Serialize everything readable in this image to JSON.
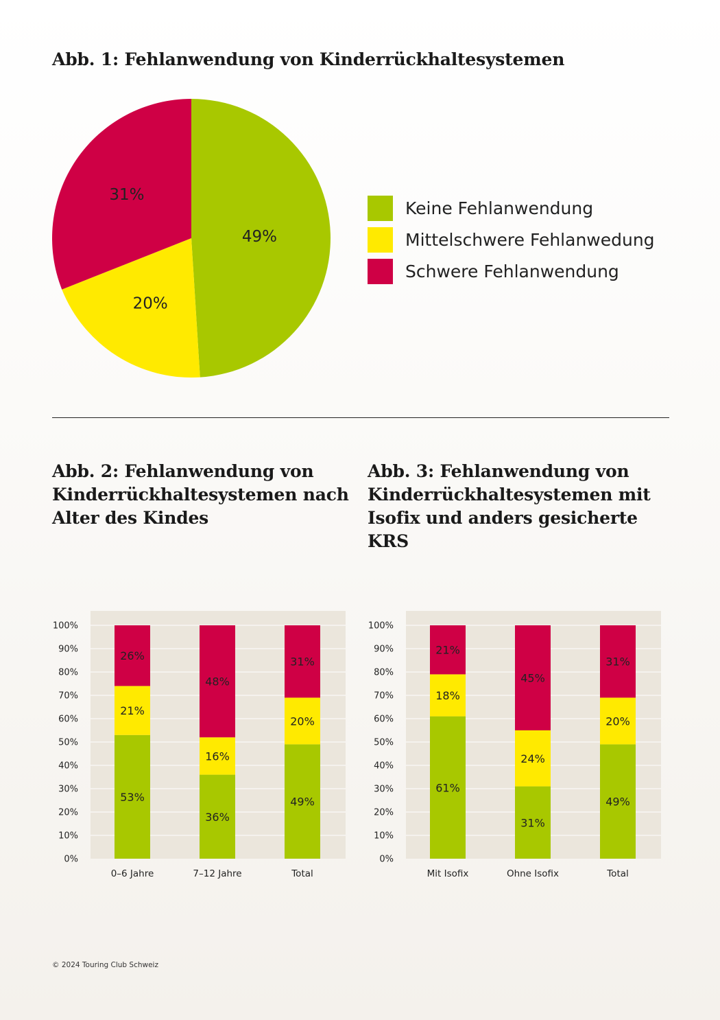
{
  "colors": {
    "green": "#a8c800",
    "yellow": "#ffea00",
    "red": "#cf0045",
    "plot_bg": "#ebe6dc",
    "grid": "#ffffff"
  },
  "chart_data": [
    {
      "type": "pie",
      "title": "Abb. 1: Fehlanwendung von Kinderrückhaltesystemen",
      "labels": [
        "Keine Fehlanwendung",
        "Mittelschwere Fehlanwedung",
        "Schwere Fehlanwendung"
      ],
      "values": [
        49,
        20,
        31
      ],
      "value_labels": [
        "49%",
        "20%",
        "31%"
      ],
      "legend": "right"
    },
    {
      "type": "bar",
      "stacked": true,
      "title": "Abb. 2: Fehlanwendung von Kinderrückhaltesystemen nach Alter des Kindes",
      "categories": [
        "0–6 Jahre",
        "7–12 Jahre",
        "Total"
      ],
      "series": [
        {
          "values": [
            53,
            36,
            49
          ],
          "labels": [
            "53%",
            "36%",
            "49%"
          ]
        },
        {
          "values": [
            21,
            16,
            20
          ],
          "labels": [
            "21%",
            "16%",
            "20%"
          ]
        },
        {
          "values": [
            26,
            48,
            31
          ],
          "labels": [
            "26%",
            "48%",
            "31%"
          ]
        }
      ],
      "ylim": [
        0,
        100
      ],
      "yticks": [
        "0%",
        "10%",
        "20%",
        "30%",
        "40%",
        "50%",
        "60%",
        "70%",
        "80%",
        "90%",
        "100%"
      ],
      "grid": true
    },
    {
      "type": "bar",
      "stacked": true,
      "title": "Abb. 3: Fehlanwendung von Kinderrückhaltesystemen mit Isofix und anders gesicherte KRS",
      "categories": [
        "Mit Isofix",
        "Ohne Isofix",
        "Total"
      ],
      "series": [
        {
          "values": [
            61,
            31,
            49
          ],
          "labels": [
            "61%",
            "31%",
            "49%"
          ]
        },
        {
          "values": [
            18,
            24,
            20
          ],
          "labels": [
            "18%",
            "24%",
            "20%"
          ]
        },
        {
          "values": [
            21,
            45,
            31
          ],
          "labels": [
            "21%",
            "45%",
            "31%"
          ]
        }
      ],
      "ylim": [
        0,
        100
      ],
      "yticks": [
        "0%",
        "10%",
        "20%",
        "30%",
        "40%",
        "50%",
        "60%",
        "70%",
        "80%",
        "90%",
        "100%"
      ],
      "grid": true
    }
  ],
  "footer": "© 2024 Touring Club Schweiz"
}
